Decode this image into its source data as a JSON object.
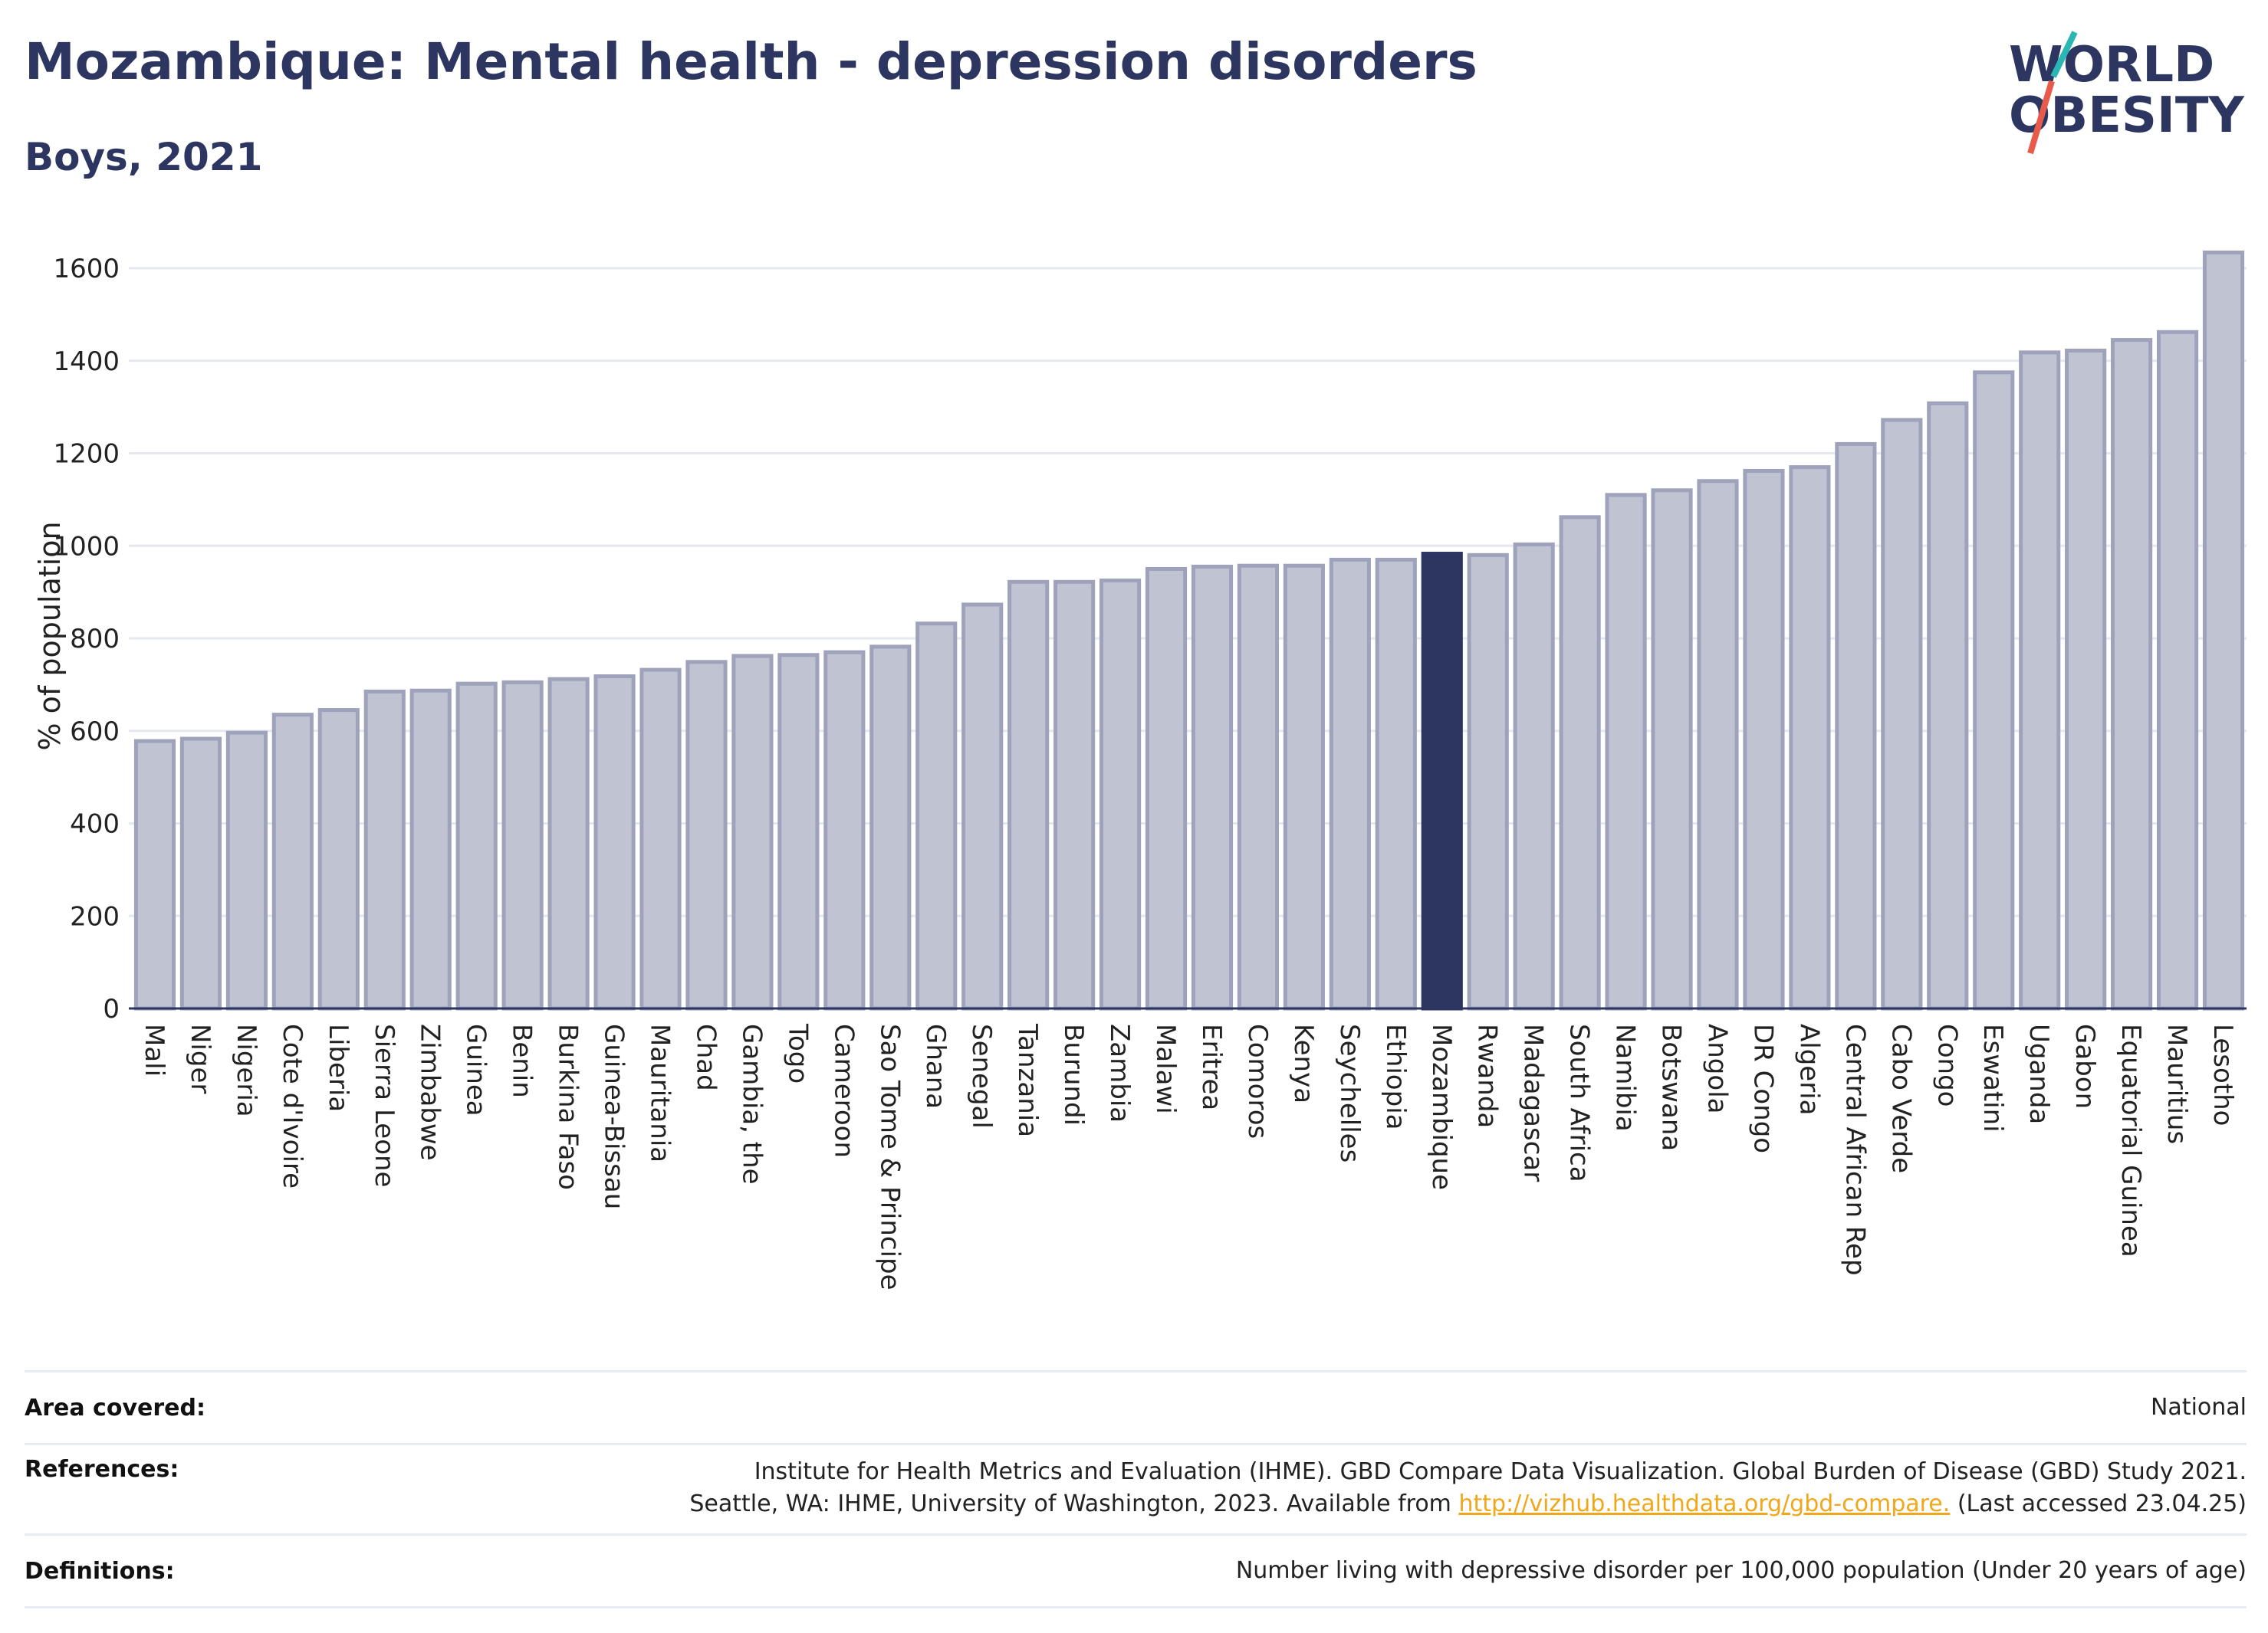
{
  "header": {
    "title": "Mozambique: Mental health - depression disorders",
    "subtitle": "Boys, 2021"
  },
  "logo": {
    "line1": "WORLD",
    "line2": "OBESITY",
    "accent_colors": [
      "#2ab7b3",
      "#e85b4a"
    ]
  },
  "colors": {
    "bar_fill": "#bfc3d2",
    "bar_stroke": "#9ea3bb",
    "highlight": "#2d3561",
    "title": "#2d3561",
    "grid": "#e6e8ef",
    "link": "#f0a81a"
  },
  "chart_data": {
    "type": "bar",
    "title": "Mozambique: Mental health - depression disorders",
    "subtitle": "Boys, 2021",
    "ylabel": "% of population",
    "xlabel": "",
    "ylim": [
      0,
      1650
    ],
    "yticks": [
      0,
      200,
      400,
      600,
      800,
      1000,
      1200,
      1400,
      1600
    ],
    "grid": true,
    "highlight": "Mozambique",
    "categories": [
      "Mali",
      "Niger",
      "Nigeria",
      "Cote d'Ivoire",
      "Liberia",
      "Sierra Leone",
      "Zimbabwe",
      "Guinea",
      "Benin",
      "Burkina Faso",
      "Guinea-Bissau",
      "Mauritania",
      "Chad",
      "Gambia, the",
      "Togo",
      "Cameroon",
      "Sao Tome & Principe",
      "Ghana",
      "Senegal",
      "Tanzania",
      "Burundi",
      "Zambia",
      "Malawi",
      "Eritrea",
      "Comoros",
      "Kenya",
      "Seychelles",
      "Ethiopia",
      "Mozambique",
      "Rwanda",
      "Madagascar",
      "South Africa",
      "Namibia",
      "Botswana",
      "Angola",
      "DR Congo",
      "Algeria",
      "Central African Rep",
      "Cabo Verde",
      "Congo",
      "Eswatini",
      "Uganda",
      "Gabon",
      "Equatorial Guinea",
      "Mauritius",
      "Lesotho"
    ],
    "values": [
      578,
      583,
      596,
      635,
      645,
      685,
      687,
      702,
      705,
      712,
      718,
      732,
      749,
      762,
      764,
      770,
      782,
      832,
      873,
      922,
      922,
      925,
      950,
      955,
      957,
      957,
      970,
      970,
      983,
      980,
      1003,
      1062,
      1110,
      1120,
      1140,
      1162,
      1170,
      1220,
      1272,
      1308,
      1375,
      1418,
      1422,
      1445,
      1462,
      1634
    ]
  },
  "info": {
    "area_label": "Area covered:",
    "area_value": "National",
    "references_label": "References:",
    "references_line1": "Institute for Health Metrics and Evaluation (IHME). GBD Compare Data Visualization. Global Burden of Disease (GBD) Study 2021.",
    "references_line2_pre": "Seattle, WA: IHME, University of Washington, 2023. Available from ",
    "references_link": "http://vizhub.healthdata.org/gbd-compare.",
    "references_line2_post": " (Last accessed 23.04.25)",
    "definitions_label": "Definitions:",
    "definitions_value": "Number living with depressive disorder per 100,000 population (Under 20 years of age)"
  }
}
